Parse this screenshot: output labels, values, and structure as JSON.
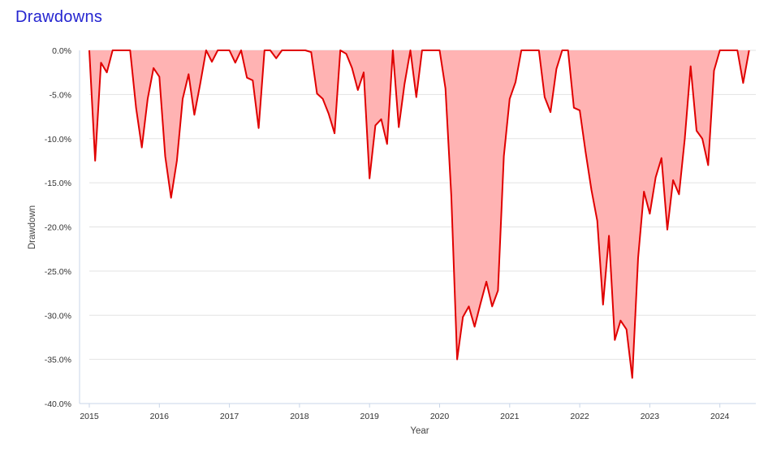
{
  "chart_data": {
    "type": "area",
    "title": "Drawdowns",
    "xlabel": "Year",
    "ylabel": "Drawdown",
    "xlim": [
      2015.0,
      2024.5
    ],
    "ylim": [
      -40,
      0
    ],
    "x_ticks": [
      "2015",
      "2016",
      "2017",
      "2018",
      "2019",
      "2020",
      "2021",
      "2022",
      "2023",
      "2024"
    ],
    "y_ticks": [
      "0.0%",
      "-5.0%",
      "-10.0%",
      "-15.0%",
      "-20.0%",
      "-25.0%",
      "-30.0%",
      "-35.0%",
      "-40.0%"
    ],
    "grid": true,
    "colors": {
      "line": "#e00000",
      "fill": "#ffb3b3",
      "title": "#2525d0"
    },
    "series": [
      {
        "x": [
          2015.0,
          2015.083,
          2015.167,
          2015.25,
          2015.333,
          2015.417,
          2015.5,
          2015.583,
          2015.667,
          2015.75,
          2015.833,
          2015.917,
          2016.0,
          2016.083,
          2016.167,
          2016.25,
          2016.333,
          2016.417,
          2016.5,
          2016.583,
          2016.667,
          2016.75,
          2016.833,
          2016.917,
          2017.0,
          2017.083,
          2017.167,
          2017.25,
          2017.333,
          2017.417,
          2017.5,
          2017.583,
          2017.667,
          2017.75,
          2017.833,
          2017.917,
          2018.0,
          2018.083,
          2018.167,
          2018.25,
          2018.333,
          2018.417,
          2018.5,
          2018.583,
          2018.667,
          2018.75,
          2018.833,
          2018.917,
          2019.0,
          2019.083,
          2019.167,
          2019.25,
          2019.333,
          2019.417,
          2019.5,
          2019.583,
          2019.667,
          2019.75,
          2019.833,
          2019.917,
          2020.0,
          2020.083,
          2020.167,
          2020.25,
          2020.333,
          2020.417,
          2020.5,
          2020.583,
          2020.667,
          2020.75,
          2020.833,
          2020.917,
          2021.0,
          2021.083,
          2021.167,
          2021.25,
          2021.333,
          2021.417,
          2021.5,
          2021.583,
          2021.667,
          2021.75,
          2021.833,
          2021.917,
          2022.0,
          2022.083,
          2022.167,
          2022.25,
          2022.333,
          2022.417,
          2022.5,
          2022.583,
          2022.667,
          2022.75,
          2022.833,
          2022.917,
          2023.0,
          2023.083,
          2023.167,
          2023.25,
          2023.333,
          2023.417,
          2023.5,
          2023.583,
          2023.667,
          2023.75,
          2023.833,
          2023.917,
          2024.0,
          2024.083,
          2024.167,
          2024.25,
          2024.333,
          2024.417
        ],
        "values": [
          0,
          -12.5,
          -1.4,
          -2.5,
          0,
          0,
          0,
          0,
          -6.5,
          -11.0,
          -5.5,
          -2.0,
          -3.0,
          -12.0,
          -16.7,
          -12.5,
          -5.5,
          -2.7,
          -7.3,
          -3.8,
          0,
          -1.3,
          0,
          0,
          0,
          -1.4,
          0,
          -3.1,
          -3.4,
          -8.8,
          0,
          0,
          -0.9,
          0,
          0,
          0,
          0,
          0,
          -0.2,
          -4.9,
          -5.5,
          -7.2,
          -9.4,
          0,
          -0.4,
          -2.0,
          -4.5,
          -2.5,
          -14.5,
          -8.5,
          -7.8,
          -10.6,
          0,
          -8.7,
          -3.8,
          0,
          -5.3,
          0,
          0,
          0,
          0,
          -4.3,
          -16.5,
          -35.0,
          -30.2,
          -29.0,
          -31.3,
          -28.7,
          -26.2,
          -29.0,
          -27.2,
          -12.0,
          -5.5,
          -3.6,
          0,
          0,
          0,
          0,
          -5.3,
          -7.0,
          -2.1,
          0,
          0,
          -6.5,
          -6.8,
          -11.5,
          -15.8,
          -19.3,
          -28.8,
          -21.0,
          -32.8,
          -30.6,
          -31.6,
          -37.1,
          -23.5,
          -16.0,
          -18.5,
          -14.4,
          -12.2,
          -20.3,
          -14.7,
          -16.3,
          -10.0,
          -1.8,
          -9.1,
          -10.0,
          -13.0,
          -2.3,
          0,
          0,
          0,
          0,
          -3.7,
          0
        ]
      }
    ]
  }
}
